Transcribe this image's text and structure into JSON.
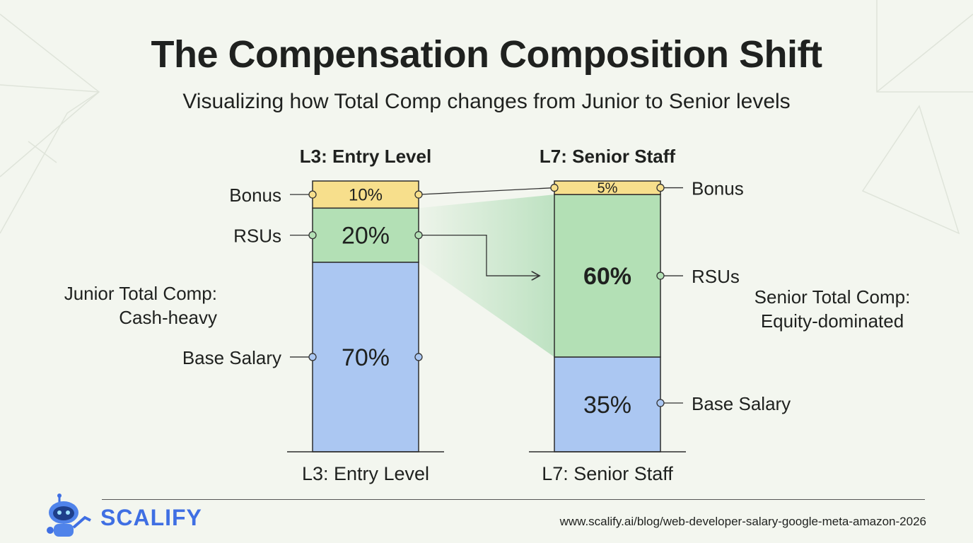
{
  "title": "The Compensation Composition Shift",
  "subtitle": "Visualizing how Total Comp changes from Junior to Senior levels",
  "brand": {
    "name": "SCALIFY",
    "url": "www.scalify.ai/blog/web-developer-salary-google-meta-amazon-2026"
  },
  "colors": {
    "bonus": "#f7df8c",
    "rsus": "#b3e0b5",
    "base": "#abc7f2",
    "highlight": "#7cc98a"
  },
  "chart_data": {
    "type": "bar",
    "stacked": true,
    "categories": [
      "L3: Entry Level",
      "L7: Senior Staff"
    ],
    "series": [
      {
        "name": "Base Salary",
        "values": [
          70,
          35
        ],
        "labels": [
          "70%",
          "35%"
        ]
      },
      {
        "name": "RSUs",
        "values": [
          20,
          60
        ],
        "labels": [
          "20%",
          "60%"
        ]
      },
      {
        "name": "Bonus",
        "values": [
          10,
          5
        ],
        "labels": [
          "10%",
          "5%"
        ]
      }
    ],
    "column_titles": [
      "L3: Entry Level",
      "L7: Senior Staff"
    ],
    "annotations": {
      "junior": [
        "Junior Total Comp:",
        "Cash-heavy"
      ],
      "senior": [
        "Senior Total Comp:",
        "Equity-dominated"
      ]
    },
    "ylim": [
      0,
      100
    ]
  }
}
